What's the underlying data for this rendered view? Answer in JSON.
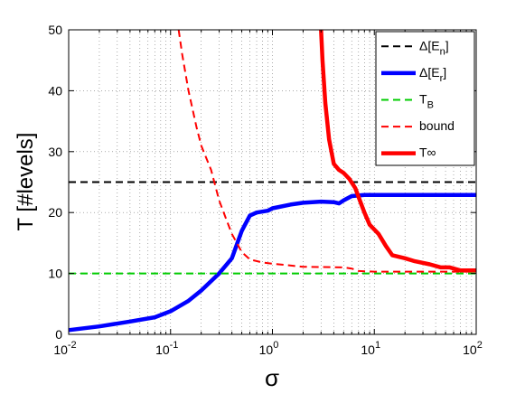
{
  "chart_data": {
    "type": "line",
    "xscale": "log",
    "xlim": [
      0.01,
      100
    ],
    "ylim": [
      0,
      50
    ],
    "xticks": [
      0.01,
      0.1,
      1,
      10,
      100
    ],
    "xtick_labels": [
      {
        "base": "10",
        "exp": "-2"
      },
      {
        "base": "10",
        "exp": "-1"
      },
      {
        "base": "10",
        "exp": "0"
      },
      {
        "base": "10",
        "exp": "1"
      },
      {
        "base": "10",
        "exp": "2"
      }
    ],
    "yticks": [
      0,
      10,
      20,
      30,
      40,
      50
    ],
    "ytick_labels": [
      "0",
      "10",
      "20",
      "30",
      "40",
      "50"
    ],
    "xlabel": "σ",
    "ylabel": "T [#levels]",
    "grid": true,
    "legend_position": "top-right",
    "series": [
      {
        "name": "Δ[E_n]",
        "legend": {
          "main": "Δ[E",
          "sub": "n",
          "tail": "]"
        },
        "color": "#000000",
        "dash": "dashed",
        "width": "thin",
        "points": [
          [
            0.01,
            25
          ],
          [
            100,
            25
          ]
        ]
      },
      {
        "name": "Δ[E_r]",
        "legend": {
          "main": "Δ[E",
          "sub": "r",
          "tail": "]"
        },
        "color": "#0000ff",
        "dash": "solid",
        "width": "thick",
        "points": [
          [
            0.01,
            0.7
          ],
          [
            0.02,
            1.3
          ],
          [
            0.04,
            2.1
          ],
          [
            0.07,
            2.8
          ],
          [
            0.1,
            3.8
          ],
          [
            0.15,
            5.5
          ],
          [
            0.2,
            7.2
          ],
          [
            0.3,
            10
          ],
          [
            0.4,
            12.5
          ],
          [
            0.5,
            17
          ],
          [
            0.6,
            19.5
          ],
          [
            0.7,
            20
          ],
          [
            0.9,
            20.3
          ],
          [
            1.0,
            20.7
          ],
          [
            1.5,
            21.3
          ],
          [
            2,
            21.6
          ],
          [
            3,
            21.8
          ],
          [
            4,
            21.7
          ],
          [
            4.5,
            21.5
          ],
          [
            5,
            22
          ],
          [
            6,
            22.7
          ],
          [
            8,
            22.9
          ],
          [
            15,
            22.9
          ],
          [
            30,
            22.9
          ],
          [
            100,
            22.9
          ]
        ]
      },
      {
        "name": "T_B",
        "legend": {
          "main": "T",
          "sub": "B",
          "tail": ""
        },
        "color": "#00cc00",
        "dash": "dashed",
        "width": "thin",
        "points": [
          [
            0.01,
            10
          ],
          [
            100,
            10
          ]
        ]
      },
      {
        "name": "bound",
        "legend": {
          "main": "bound",
          "sub": "",
          "tail": ""
        },
        "color": "#ff0000",
        "dash": "dashed",
        "width": "thin",
        "points": [
          [
            0.12,
            50
          ],
          [
            0.13,
            46
          ],
          [
            0.15,
            40
          ],
          [
            0.18,
            34
          ],
          [
            0.2,
            31
          ],
          [
            0.25,
            27
          ],
          [
            0.3,
            22
          ],
          [
            0.35,
            19
          ],
          [
            0.4,
            16.5
          ],
          [
            0.5,
            13.5
          ],
          [
            0.6,
            12.3
          ],
          [
            0.8,
            11.8
          ],
          [
            1,
            11.6
          ],
          [
            2,
            11.1
          ],
          [
            5,
            11.0
          ],
          [
            6,
            10.8
          ],
          [
            7,
            10.4
          ],
          [
            10,
            10.3
          ],
          [
            20,
            10.3
          ],
          [
            30,
            10.3
          ],
          [
            50,
            10.3
          ],
          [
            100,
            10.3
          ]
        ]
      },
      {
        "name": "T∞",
        "legend": {
          "main": "T∞",
          "sub": "",
          "tail": ""
        },
        "color": "#ff0000",
        "dash": "solid",
        "width": "thick",
        "points": [
          [
            3.0,
            50
          ],
          [
            3.1,
            45
          ],
          [
            3.3,
            38
          ],
          [
            3.6,
            32
          ],
          [
            4.0,
            28
          ],
          [
            4.5,
            27
          ],
          [
            5,
            26.5
          ],
          [
            5.7,
            25.5
          ],
          [
            6.5,
            24
          ],
          [
            7.2,
            22
          ],
          [
            8,
            20
          ],
          [
            9,
            18
          ],
          [
            11,
            16.5
          ],
          [
            13,
            14.5
          ],
          [
            15,
            13
          ],
          [
            20,
            12.5
          ],
          [
            25,
            12
          ],
          [
            35,
            11.5
          ],
          [
            45,
            11
          ],
          [
            55,
            11
          ],
          [
            70,
            10.5
          ],
          [
            100,
            10.5
          ]
        ]
      }
    ]
  }
}
